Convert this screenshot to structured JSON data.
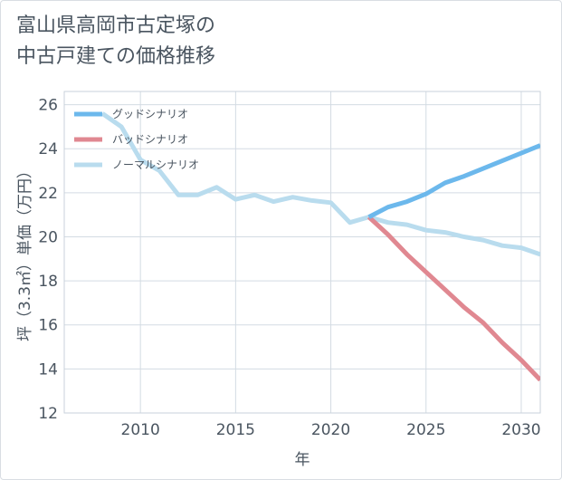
{
  "title_line1": "富山県高岡市古定塚の",
  "title_line2": "中古戸建ての価格推移",
  "chart_data": {
    "type": "line",
    "xlabel": "年",
    "ylabel": "坪（3.3㎡）単価（万円）",
    "xlim": [
      2006,
      2031
    ],
    "ylim": [
      12,
      26.6
    ],
    "xticks": [
      2010,
      2015,
      2020,
      2025,
      2030
    ],
    "yticks": [
      12,
      14,
      16,
      18,
      20,
      22,
      24,
      26
    ],
    "grid": true,
    "legend_position": "top-left",
    "series": [
      {
        "name": "グッドシナリオ",
        "color": "#6cb8ec",
        "points": [
          [
            2022,
            20.9
          ],
          [
            2023,
            21.35
          ],
          [
            2024,
            21.6
          ],
          [
            2025,
            21.95
          ],
          [
            2026,
            22.45
          ],
          [
            2027,
            22.75
          ],
          [
            2028,
            23.1
          ],
          [
            2029,
            23.45
          ],
          [
            2030,
            23.8
          ],
          [
            2031,
            24.15
          ]
        ]
      },
      {
        "name": "バッドシナリオ",
        "color": "#e08891",
        "points": [
          [
            2022,
            20.9
          ],
          [
            2023,
            20.1
          ],
          [
            2024,
            19.2
          ],
          [
            2025,
            18.4
          ],
          [
            2026,
            17.6
          ],
          [
            2027,
            16.8
          ],
          [
            2028,
            16.1
          ],
          [
            2029,
            15.2
          ],
          [
            2030,
            14.4
          ],
          [
            2031,
            13.5
          ]
        ]
      },
      {
        "name": "ノーマルシナリオ",
        "color": "#b9dcee",
        "points": [
          [
            2008,
            25.6
          ],
          [
            2009,
            25.0
          ],
          [
            2010,
            23.5
          ],
          [
            2011,
            23.0
          ],
          [
            2012,
            21.9
          ],
          [
            2013,
            21.9
          ],
          [
            2014,
            22.25
          ],
          [
            2015,
            21.7
          ],
          [
            2016,
            21.9
          ],
          [
            2017,
            21.6
          ],
          [
            2018,
            21.8
          ],
          [
            2019,
            21.65
          ],
          [
            2020,
            21.55
          ],
          [
            2021,
            20.65
          ],
          [
            2022,
            20.9
          ],
          [
            2023,
            20.65
          ],
          [
            2024,
            20.55
          ],
          [
            2025,
            20.3
          ],
          [
            2026,
            20.2
          ],
          [
            2027,
            20.0
          ],
          [
            2028,
            19.85
          ],
          [
            2029,
            19.6
          ],
          [
            2030,
            19.5
          ],
          [
            2031,
            19.2
          ]
        ]
      }
    ]
  }
}
